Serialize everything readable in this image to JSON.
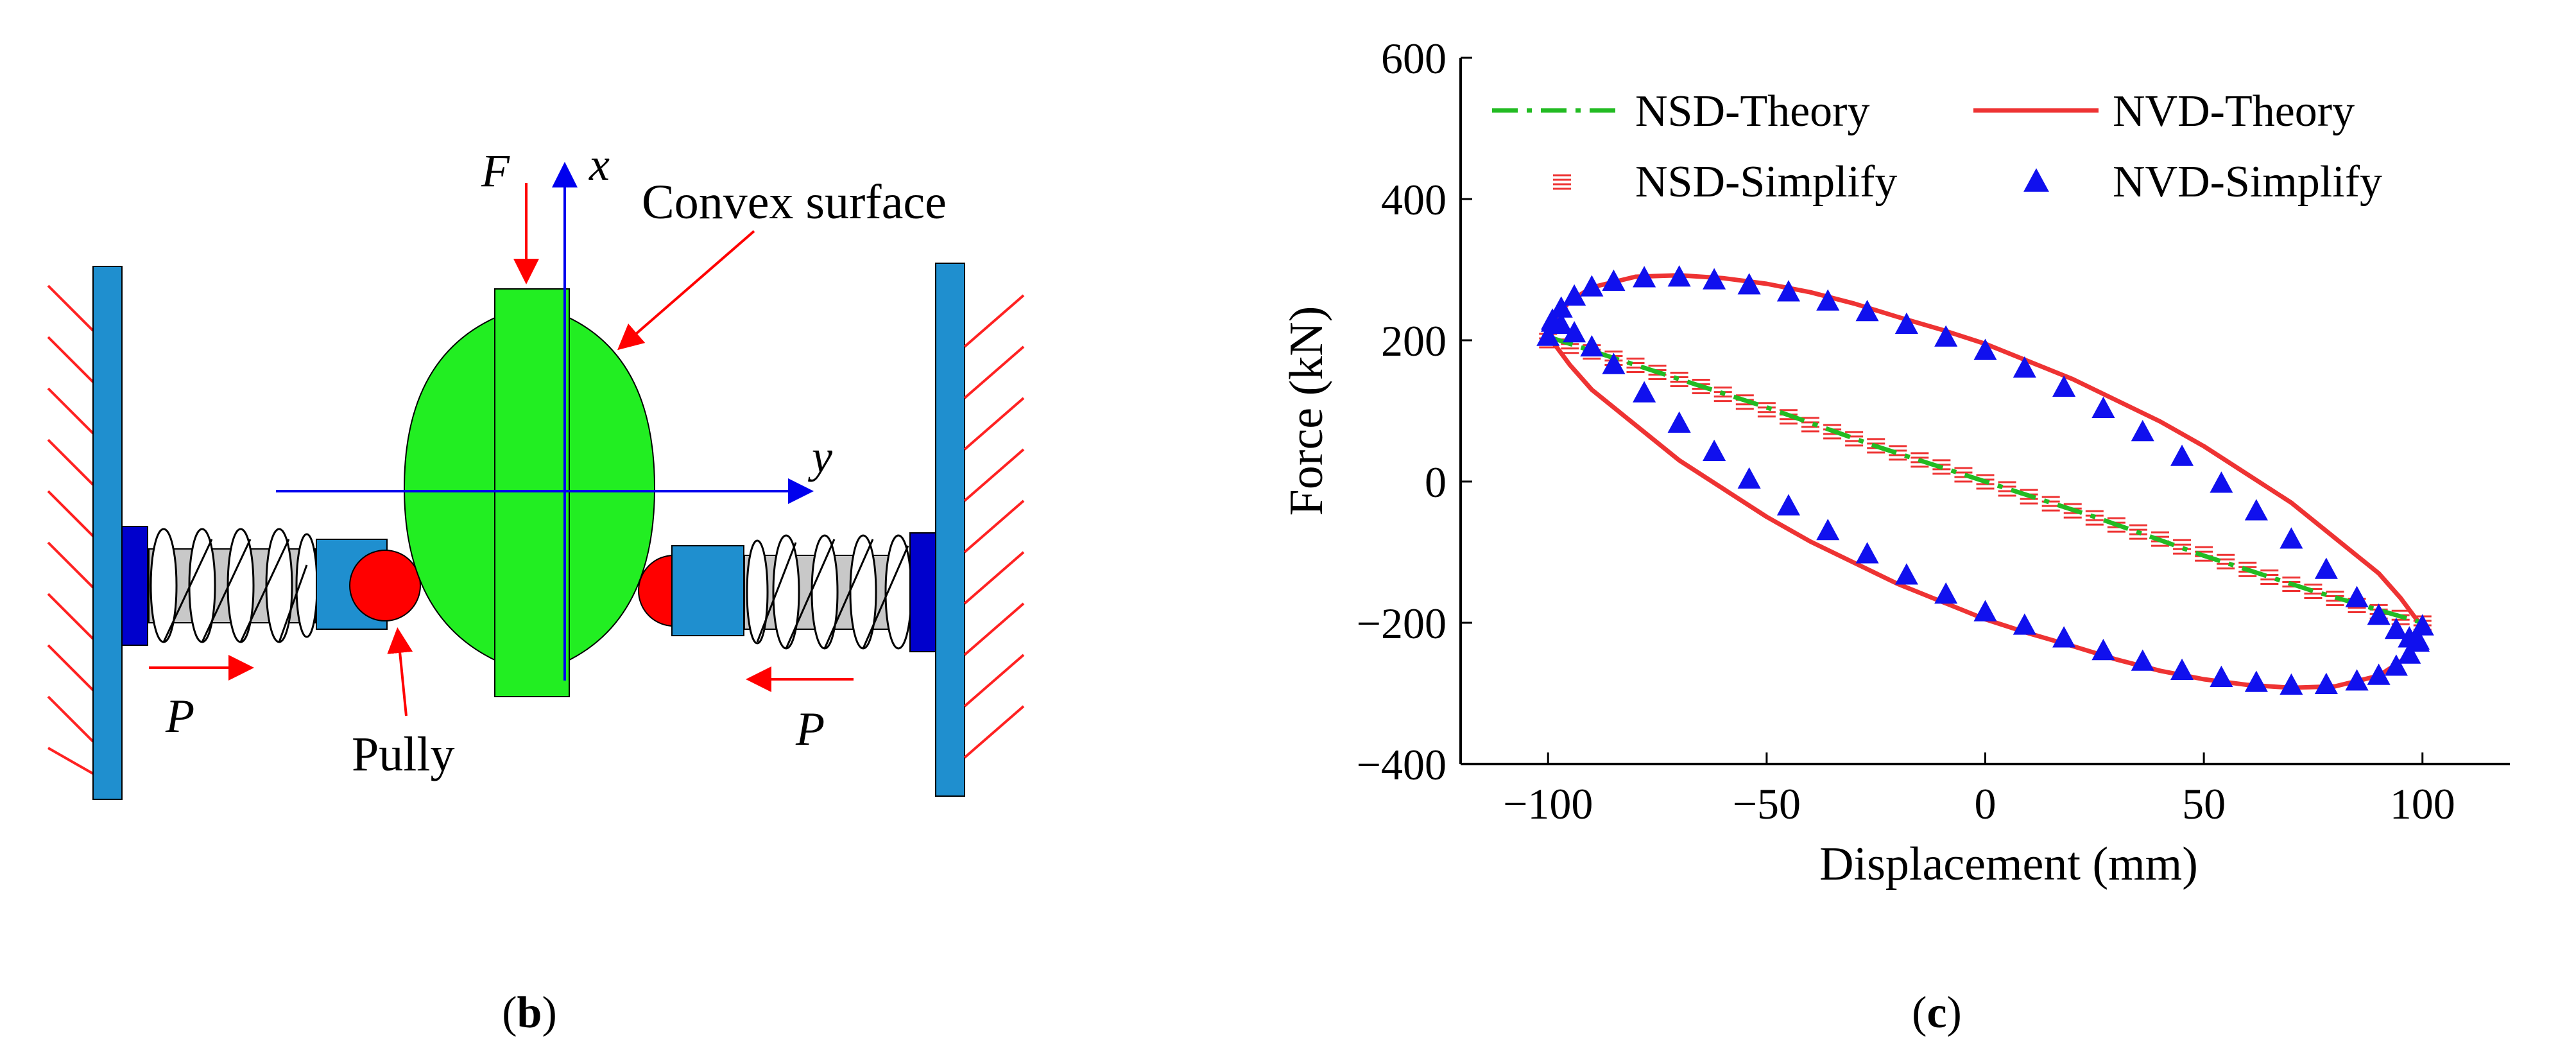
{
  "panel_b": {
    "label_open": "(",
    "label_letter": "b",
    "label_close": ")",
    "force_symbol": "F",
    "x_axis_symbol": "x",
    "y_axis_symbol": "y",
    "convex_label": "Convex surface",
    "pulley_label": "Pully",
    "preload_left": "P",
    "preload_right": "P",
    "colors": {
      "convex_body": "#22ee22",
      "wall": "#1f8fcf",
      "arrow": "#ff0000",
      "axis": "#0000ee",
      "pulley": "#ff0000",
      "spring_end": "#0000cc"
    }
  },
  "panel_c": {
    "label_open": "(",
    "label_letter": "c",
    "label_close": ")"
  },
  "chart_data": {
    "type": "line",
    "title": "",
    "xlabel": "Displacement (mm)",
    "ylabel": "Force (kN)",
    "xlim": [
      -120,
      120
    ],
    "ylim": [
      -400,
      600
    ],
    "xticks": [
      -100,
      -50,
      0,
      50,
      100
    ],
    "yticks": [
      -400,
      -200,
      0,
      200,
      400,
      600
    ],
    "grid": false,
    "legend": "top",
    "series": [
      {
        "name": "NSD-Theory",
        "style": "dash-dot",
        "color": "#22bb22",
        "x": [
          -100,
          -75,
          -50,
          -25,
          0,
          25,
          50,
          75,
          100
        ],
        "y": [
          205,
          155,
          105,
          50,
          0,
          -50,
          -105,
          -155,
          -200
        ]
      },
      {
        "name": "NVD-Theory",
        "style": "solid",
        "color": "#ee3333",
        "x": [
          -100,
          -98,
          -95,
          -90,
          -80,
          -70,
          -60,
          -50,
          -40,
          -30,
          -20,
          -10,
          0,
          10,
          20,
          30,
          40,
          50,
          60,
          70,
          80,
          90,
          95,
          98,
          100,
          98,
          95,
          90,
          80,
          70,
          60,
          50,
          40,
          30,
          20,
          10,
          0,
          -10,
          -20,
          -30,
          -40,
          -50,
          -60,
          -70,
          -80,
          -90,
          -95,
          -98,
          -100
        ],
        "y": [
          205,
          235,
          255,
          275,
          290,
          292,
          288,
          280,
          268,
          252,
          233,
          215,
          195,
          170,
          145,
          115,
          85,
          50,
          10,
          -30,
          -80,
          -130,
          -165,
          -190,
          -205,
          -235,
          -255,
          -275,
          -290,
          -292,
          -288,
          -280,
          -268,
          -252,
          -233,
          -215,
          -195,
          -170,
          -145,
          -115,
          -85,
          -50,
          -10,
          30,
          80,
          130,
          165,
          190,
          205
        ]
      },
      {
        "name": "NSD-Simplify",
        "style": "marker-dash",
        "color": "#ee3333",
        "x": [
          -100,
          -95,
          -90,
          -85,
          -80,
          -75,
          -70,
          -65,
          -60,
          -55,
          -50,
          -45,
          -40,
          -35,
          -30,
          -25,
          -20,
          -15,
          -10,
          -5,
          0,
          5,
          10,
          15,
          20,
          25,
          30,
          35,
          40,
          45,
          50,
          55,
          60,
          65,
          70,
          75,
          80,
          85,
          90,
          95,
          100
        ],
        "y": [
          200,
          192,
          184,
          175,
          165,
          155,
          145,
          135,
          124,
          113,
          102,
          92,
          81,
          71,
          61,
          51,
          41,
          31,
          21,
          10,
          0,
          -10,
          -21,
          -31,
          -41,
          -51,
          -61,
          -71,
          -81,
          -92,
          -102,
          -113,
          -124,
          -135,
          -145,
          -155,
          -165,
          -175,
          -184,
          -192,
          -200
        ]
      },
      {
        "name": "NVD-Simplify",
        "style": "marker-triangle",
        "color": "#1010ee",
        "x": [
          -100,
          -99,
          -97,
          -94,
          -90,
          -85,
          -78,
          -70,
          -62,
          -54,
          -45,
          -36,
          -27,
          -18,
          -9,
          0,
          9,
          18,
          27,
          36,
          45,
          54,
          62,
          70,
          78,
          85,
          90,
          94,
          97,
          99,
          100,
          99,
          97,
          94,
          90,
          85,
          78,
          70,
          62,
          54,
          45,
          36,
          27,
          18,
          9,
          0,
          -9,
          -18,
          -27,
          -36,
          -45,
          -54,
          -62,
          -70,
          -78,
          -85,
          -90,
          -94,
          -97,
          -99
        ],
        "y": [
          205,
          225,
          245,
          262,
          275,
          283,
          288,
          289,
          285,
          278,
          268,
          255,
          240,
          222,
          204,
          185,
          160,
          133,
          103,
          70,
          35,
          -3,
          -42,
          -82,
          -125,
          -165,
          -190,
          -210,
          -222,
          -228,
          -205,
          -225,
          -245,
          -262,
          -275,
          -283,
          -288,
          -289,
          -285,
          -278,
          -268,
          -255,
          -240,
          -222,
          -204,
          -185,
          -160,
          -133,
          -103,
          -70,
          -35,
          3,
          42,
          82,
          125,
          165,
          190,
          210,
          222,
          228
        ]
      }
    ]
  }
}
